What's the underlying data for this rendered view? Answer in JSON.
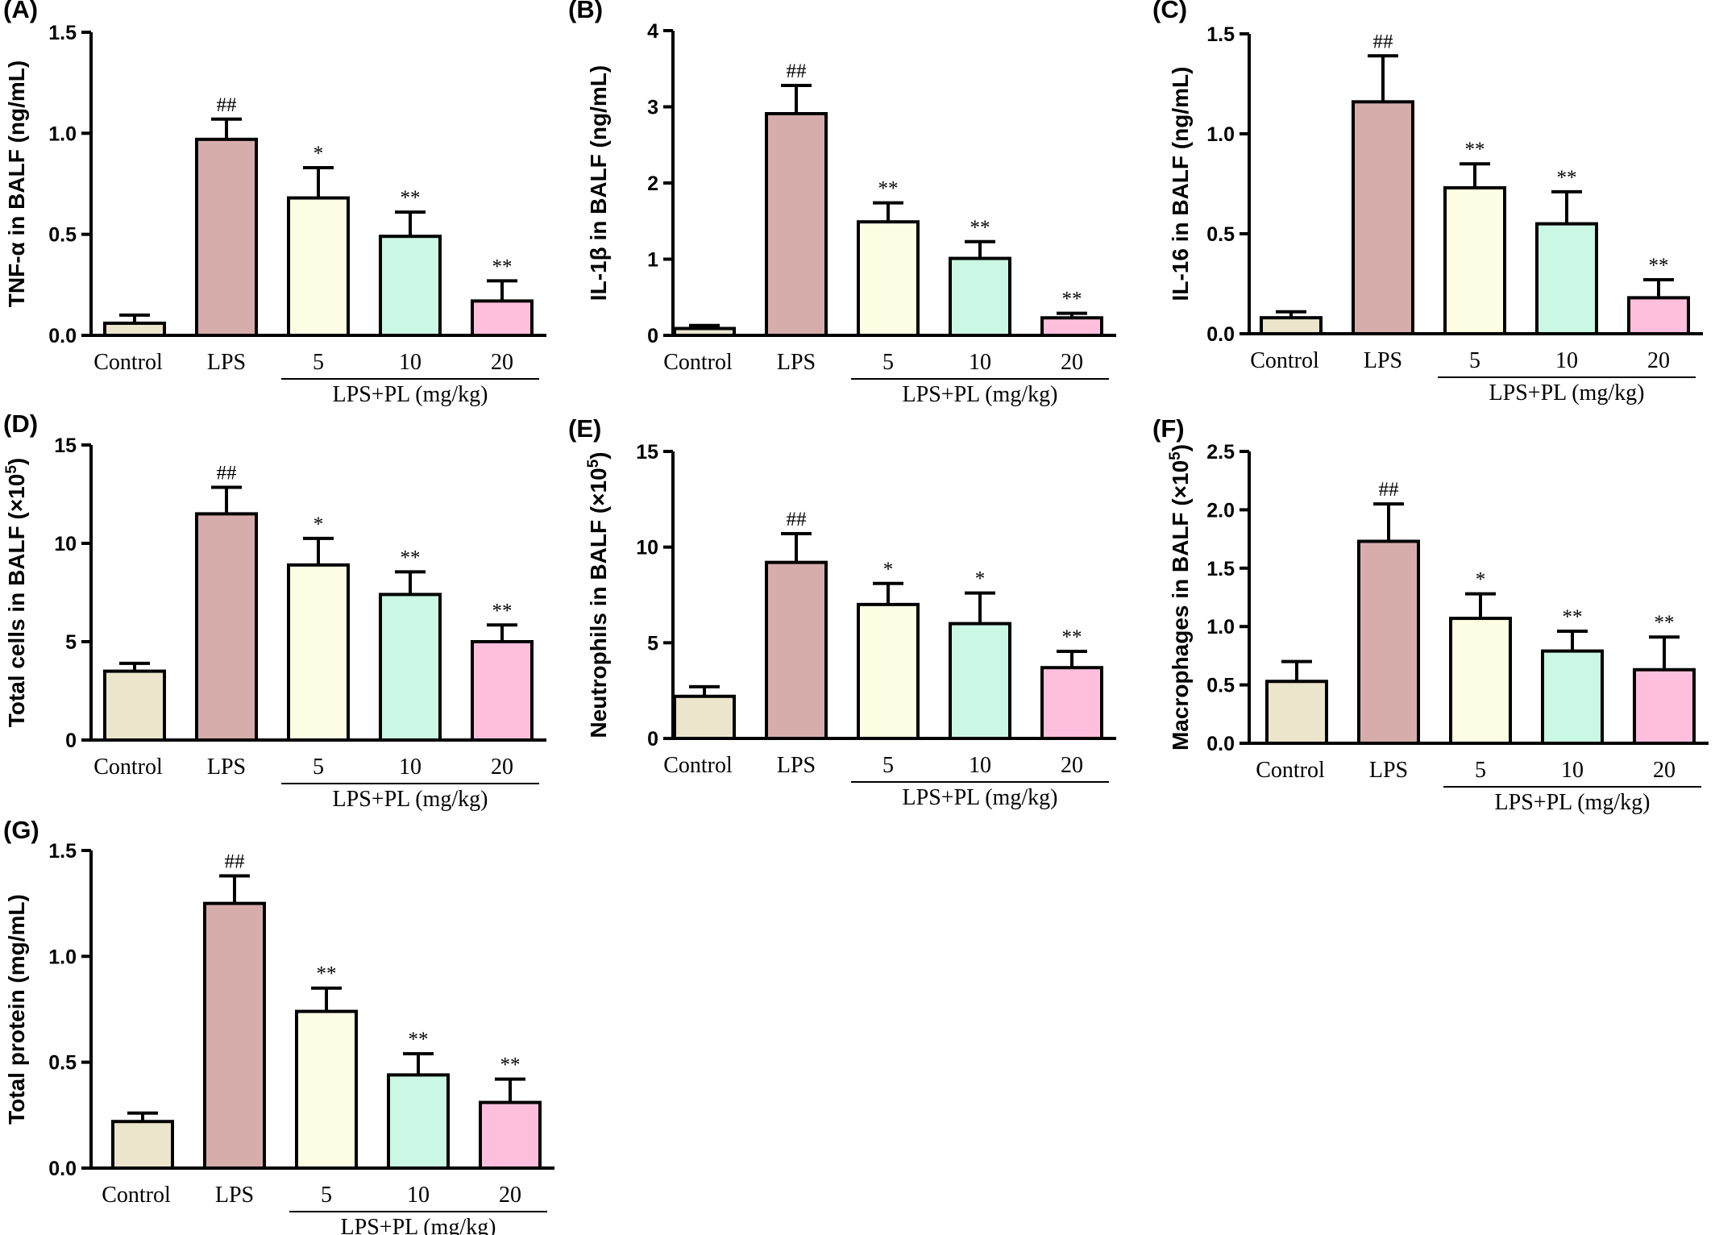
{
  "colors": {
    "Control": "#ebe5cc",
    "LPS": "#d7adac",
    "5": "#fefee4",
    "10": "#cbf8e4",
    "20": "#fdbfdc",
    "stroke": "#000000"
  },
  "chart_data": [
    {
      "panel": "(A)",
      "type": "bar",
      "ylabel": "TNF-α in BALF (ng/mL)",
      "categories": [
        "Control",
        "LPS",
        "5",
        "10",
        "20"
      ],
      "group_label": "LPS+PL (mg/kg)",
      "values": [
        0.06,
        0.97,
        0.68,
        0.49,
        0.17
      ],
      "errors": [
        0.04,
        0.1,
        0.15,
        0.12,
        0.1
      ],
      "significance": [
        "",
        "##",
        "*",
        "**",
        "**"
      ],
      "yticks": [
        "0.0",
        "0.5",
        "1.0",
        "1.5"
      ],
      "ylim": [
        0,
        1.5
      ]
    },
    {
      "panel": "(B)",
      "type": "bar",
      "ylabel": "IL-1β in BALF (ng/mL)",
      "categories": [
        "Control",
        "LPS",
        "5",
        "10",
        "20"
      ],
      "group_label": "LPS+PL (mg/kg)",
      "values": [
        0.09,
        2.91,
        1.49,
        1.01,
        0.23
      ],
      "errors": [
        0.04,
        0.37,
        0.25,
        0.22,
        0.06
      ],
      "significance": [
        "",
        "##",
        "**",
        "**",
        "**"
      ],
      "yticks": [
        "0",
        "1",
        "2",
        "3",
        "4"
      ],
      "ylim": [
        0,
        4
      ]
    },
    {
      "panel": "(C)",
      "type": "bar",
      "ylabel": "IL-16 in BALF (ng/mL)",
      "categories": [
        "Control",
        "LPS",
        "5",
        "10",
        "20"
      ],
      "group_label": "LPS+PL (mg/kg)",
      "values": [
        0.08,
        1.16,
        0.73,
        0.55,
        0.18
      ],
      "errors": [
        0.03,
        0.23,
        0.12,
        0.16,
        0.09
      ],
      "significance": [
        "",
        "##",
        "**",
        "**",
        "**"
      ],
      "yticks": [
        "0.0",
        "0.5",
        "1.0",
        "1.5"
      ],
      "ylim": [
        0,
        1.5
      ]
    },
    {
      "panel": "(D)",
      "type": "bar",
      "ylabel": "Total cells in BALF (×10",
      "ylabel_sup": "5",
      "ylabel_tail": ")",
      "categories": [
        "Control",
        "LPS",
        "5",
        "10",
        "20"
      ],
      "group_label": "LPS+PL (mg/kg)",
      "values": [
        3.5,
        11.5,
        8.9,
        7.4,
        5.0
      ],
      "errors": [
        0.4,
        1.35,
        1.35,
        1.15,
        0.85
      ],
      "significance": [
        "",
        "##",
        "*",
        "**",
        "**"
      ],
      "yticks": [
        "0",
        "5",
        "10",
        "15"
      ],
      "ylim": [
        0,
        15
      ]
    },
    {
      "panel": "(E)",
      "type": "bar",
      "ylabel": "Neutrophils  in BALF (×10",
      "ylabel_sup": "5",
      "ylabel_tail": ")",
      "categories": [
        "Control",
        "LPS",
        "5",
        "10",
        "20"
      ],
      "group_label": "LPS+PL (mg/kg)",
      "values": [
        2.2,
        9.2,
        7.0,
        6.0,
        3.7
      ],
      "errors": [
        0.5,
        1.5,
        1.1,
        1.6,
        0.85
      ],
      "significance": [
        "",
        "##",
        "*",
        "*",
        "**"
      ],
      "yticks": [
        "0",
        "5",
        "10",
        "15"
      ],
      "ylim": [
        0,
        15
      ]
    },
    {
      "panel": "(F)",
      "type": "bar",
      "ylabel": "Macrophages in BALF (×10",
      "ylabel_sup": "5",
      "ylabel_tail": ")",
      "categories": [
        "Control",
        "LPS",
        "5",
        "10",
        "20"
      ],
      "group_label": "LPS+PL (mg/kg)",
      "values": [
        0.53,
        1.73,
        1.07,
        0.79,
        0.63
      ],
      "errors": [
        0.17,
        0.32,
        0.21,
        0.17,
        0.28
      ],
      "significance": [
        "",
        "##",
        "*",
        "**",
        "**"
      ],
      "yticks": [
        "0.0",
        "0.5",
        "1.0",
        "1.5",
        "2.0",
        "2.5"
      ],
      "ylim": [
        0,
        2.5
      ]
    },
    {
      "panel": "(G)",
      "type": "bar",
      "ylabel": "Total protein (mg/mL)",
      "categories": [
        "Control",
        "LPS",
        "5",
        "10",
        "20"
      ],
      "group_label": "LPS+PL (mg/kg)",
      "values": [
        0.22,
        1.25,
        0.74,
        0.44,
        0.31
      ],
      "errors": [
        0.04,
        0.13,
        0.11,
        0.1,
        0.11
      ],
      "significance": [
        "",
        "##",
        "**",
        "**",
        "**"
      ],
      "yticks": [
        "0.0",
        "0.5",
        "1.0",
        "1.5"
      ],
      "ylim": [
        0,
        1.5
      ]
    }
  ]
}
